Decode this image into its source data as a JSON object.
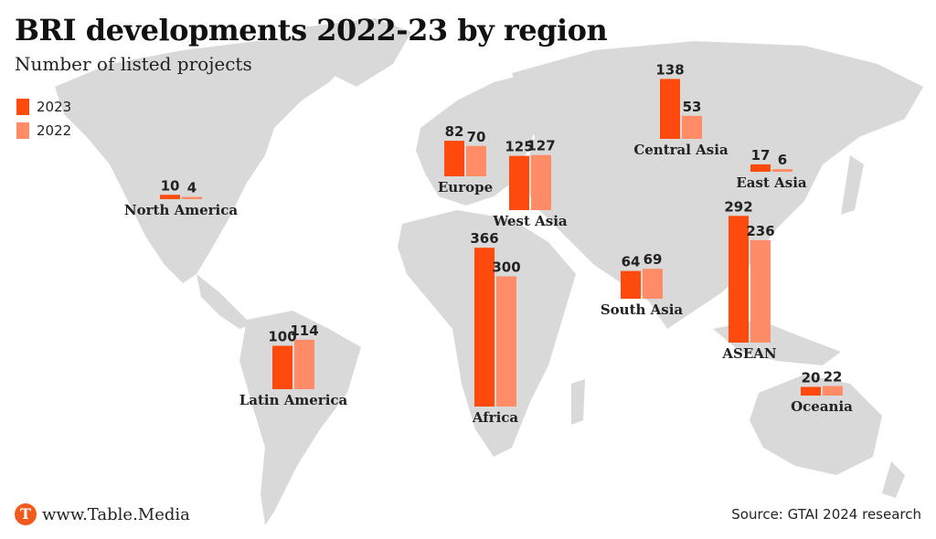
{
  "header": {
    "title": "BRI developments 2022-23 by region",
    "subtitle": "Number of listed projects"
  },
  "legend": [
    {
      "label": "2023",
      "color": "#ff4a0d"
    },
    {
      "label": "2022",
      "color": "#ff8c66"
    }
  ],
  "footer": {
    "logo_letter": "T",
    "site": "www.Table.Media",
    "source": "Source: GTAI 2024 research"
  },
  "chart_data": {
    "type": "bar",
    "categories": [
      "North America",
      "Latin America",
      "Europe",
      "Africa",
      "West Asia",
      "Central Asia",
      "South Asia",
      "East Asia",
      "ASEAN",
      "Oceania"
    ],
    "series": [
      {
        "name": "2023",
        "values": [
          10,
          100,
          82,
          366,
          125,
          138,
          64,
          17,
          292,
          20
        ]
      },
      {
        "name": "2022",
        "values": [
          4,
          114,
          70,
          300,
          127,
          53,
          69,
          6,
          236,
          22
        ]
      }
    ],
    "legend_position": "top-left",
    "grid": false
  }
}
